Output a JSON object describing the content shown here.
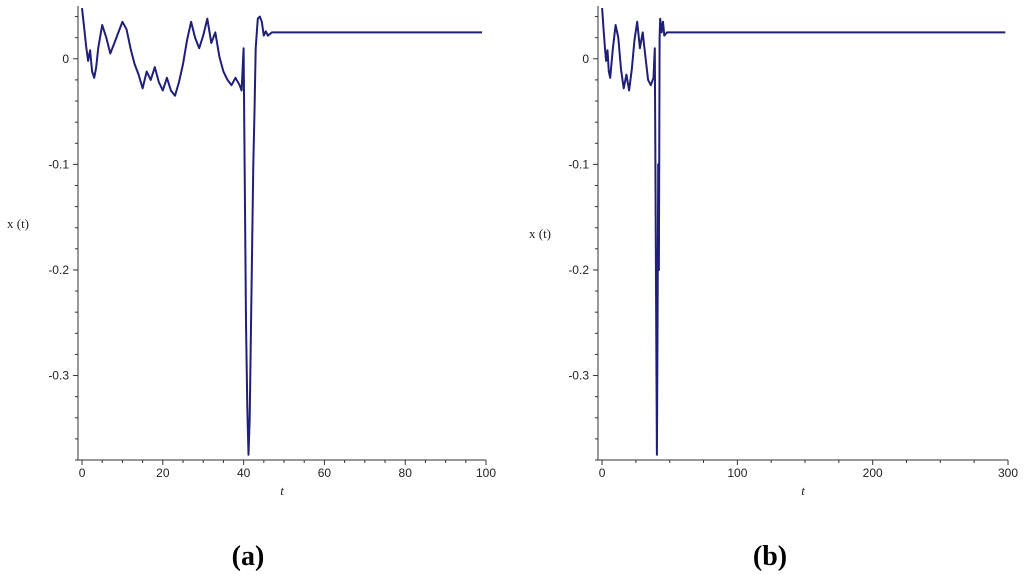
{
  "chart_data": [
    {
      "type": "line",
      "caption": "(a)",
      "title": "",
      "xlabel": "t",
      "ylabel": "x (t)",
      "xlim": [
        -1,
        100
      ],
      "ylim": [
        -0.38,
        0.05
      ],
      "xticks": [
        0,
        20,
        40,
        60,
        80,
        100
      ],
      "xtick_labels": [
        "0",
        "20",
        "40",
        "60",
        "80",
        "100"
      ],
      "yticks": [
        0,
        -0.1,
        -0.2,
        -0.3
      ],
      "ytick_labels": [
        "0",
        "-0.1",
        "-0.2",
        "-0.3"
      ],
      "grid": false,
      "legend": "none",
      "line_color": "#1f1f7a",
      "series": [
        {
          "x": [
            0,
            0.5,
            1,
            1.5,
            2,
            2.5,
            3,
            3.5,
            4,
            5,
            6,
            7,
            8,
            9,
            10,
            11,
            12,
            13,
            14,
            15,
            16,
            17,
            18,
            19,
            20,
            21,
            22,
            23,
            24,
            25,
            26,
            27,
            28,
            29,
            30,
            31,
            32,
            33,
            34,
            35,
            36,
            37,
            38,
            39,
            39.5,
            40,
            40.3,
            40.6,
            40.9,
            41.2,
            41.5,
            41.8,
            42.1,
            42.4,
            42.7,
            43,
            43.5,
            44,
            44.5,
            45,
            45.5,
            46,
            47,
            48,
            60,
            80,
            99
          ],
          "y": [
            0.048,
            0.03,
            0.012,
            -0.002,
            0.008,
            -0.012,
            -0.018,
            -0.008,
            0.01,
            0.032,
            0.02,
            0.005,
            0.015,
            0.025,
            0.035,
            0.028,
            0.01,
            -0.005,
            -0.015,
            -0.028,
            -0.012,
            -0.02,
            -0.008,
            -0.022,
            -0.03,
            -0.018,
            -0.03,
            -0.035,
            -0.022,
            -0.005,
            0.018,
            0.035,
            0.02,
            0.01,
            0.022,
            0.038,
            0.015,
            0.025,
            0.002,
            -0.012,
            -0.02,
            -0.025,
            -0.018,
            -0.025,
            -0.03,
            0.01,
            -0.12,
            -0.25,
            -0.33,
            -0.375,
            -0.34,
            -0.26,
            -0.18,
            -0.1,
            -0.05,
            0.01,
            0.038,
            0.04,
            0.035,
            0.022,
            0.026,
            0.022,
            0.025,
            0.025,
            0.025,
            0.025,
            0.025
          ]
        }
      ]
    },
    {
      "type": "line",
      "caption": "(b)",
      "title": "",
      "xlabel": "t",
      "ylabel": "x (t)",
      "xlim": [
        -3,
        300
      ],
      "ylim": [
        -0.38,
        0.05
      ],
      "xticks": [
        0,
        100,
        200,
        300
      ],
      "xtick_labels": [
        "0",
        "100",
        "200",
        "300"
      ],
      "yticks": [
        0,
        -0.1,
        -0.2,
        -0.3
      ],
      "ytick_labels": [
        "0",
        "-0.1",
        "-0.2",
        "-0.3"
      ],
      "grid": false,
      "legend": "none",
      "line_color": "#1f1f7a",
      "series": [
        {
          "x": [
            0,
            1,
            2,
            3,
            4,
            5,
            6,
            8,
            10,
            12,
            14,
            16,
            18,
            20,
            22,
            24,
            26,
            28,
            30,
            32,
            34,
            36,
            38,
            39,
            40,
            40.5,
            41,
            41.5,
            42,
            42.5,
            43,
            44,
            45,
            46,
            48,
            50,
            100,
            200,
            298
          ],
          "y": [
            0.048,
            0.03,
            0.012,
            -0.002,
            0.008,
            -0.012,
            -0.018,
            0.01,
            0.032,
            0.02,
            -0.01,
            -0.028,
            -0.015,
            -0.03,
            -0.01,
            0.018,
            0.035,
            0.01,
            0.025,
            0.002,
            -0.02,
            -0.025,
            -0.018,
            0.01,
            -0.25,
            -0.375,
            -0.26,
            -0.1,
            -0.2,
            0.02,
            0.038,
            0.025,
            0.035,
            0.022,
            0.025,
            0.025,
            0.025,
            0.025,
            0.025
          ]
        }
      ]
    }
  ]
}
